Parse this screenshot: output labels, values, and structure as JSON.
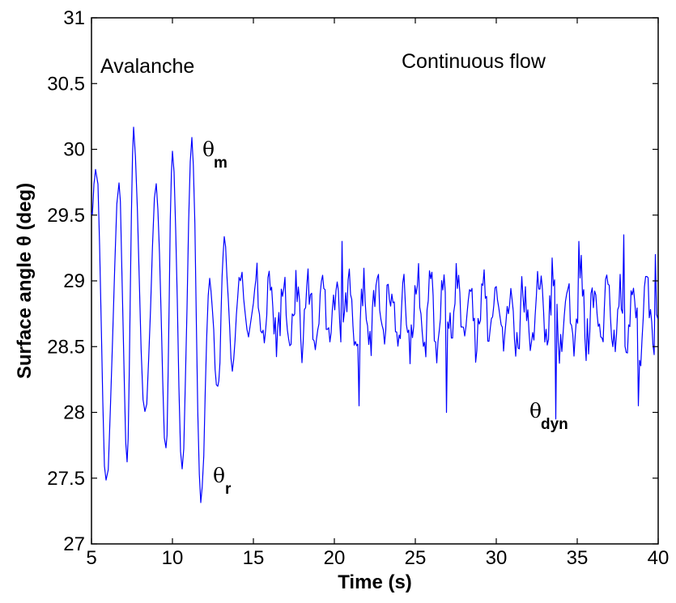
{
  "chart_data": {
    "type": "line",
    "title": "",
    "xlabel": "Time (s)",
    "ylabel": "Surface angle θ (deg)",
    "xlim": [
      5,
      40
    ],
    "ylim": [
      27,
      31
    ],
    "xticks": [
      5,
      10,
      15,
      20,
      25,
      30,
      35,
      40
    ],
    "yticks": [
      27,
      27.5,
      28,
      28.5,
      29,
      29.5,
      30,
      30.5,
      31
    ],
    "xtick_labels": [
      "5",
      "10",
      "15",
      "20",
      "25",
      "30",
      "35",
      "40"
    ],
    "ytick_labels": [
      "27",
      "27.5",
      "28",
      "28.5",
      "29",
      "29.5",
      "30",
      "30.5",
      "31"
    ],
    "grid": false,
    "line_color": "#0000ff",
    "avalanche_peaks": [
      {
        "t": 5.0,
        "v": 29.5
      },
      {
        "t": 5.3,
        "v": 29.85
      },
      {
        "t": 5.9,
        "v": 27.45
      },
      {
        "t": 6.7,
        "v": 29.7
      },
      {
        "t": 7.2,
        "v": 27.65
      },
      {
        "t": 7.6,
        "v": 30.13
      },
      {
        "t": 8.3,
        "v": 27.95
      },
      {
        "t": 9.0,
        "v": 29.7
      },
      {
        "t": 9.6,
        "v": 27.72
      },
      {
        "t": 10.0,
        "v": 30.0
      },
      {
        "t": 10.6,
        "v": 27.6
      },
      {
        "t": 11.2,
        "v": 30.1
      },
      {
        "t": 11.75,
        "v": 27.3
      },
      {
        "t": 12.3,
        "v": 29.0
      },
      {
        "t": 12.8,
        "v": 28.15
      },
      {
        "t": 13.2,
        "v": 29.3
      },
      {
        "t": 13.7,
        "v": 28.35
      },
      {
        "t": 14.2,
        "v": 29.05
      },
      {
        "t": 14.8,
        "v": 28.5
      }
    ],
    "continuous_flow": {
      "t_start": 15,
      "t_end": 40,
      "mean": 28.75,
      "amplitude": 0.3,
      "extremes": [
        {
          "t": 20.5,
          "v": 29.3
        },
        {
          "t": 21.5,
          "v": 28.05
        },
        {
          "t": 26.9,
          "v": 28.0
        },
        {
          "t": 33.7,
          "v": 27.95
        },
        {
          "t": 35.1,
          "v": 29.3
        },
        {
          "t": 37.9,
          "v": 29.35
        },
        {
          "t": 38.8,
          "v": 28.05
        },
        {
          "t": 39.8,
          "v": 29.2
        }
      ]
    },
    "annotations": {
      "avalanche": "Avalanche",
      "continuous": "Continuous flow",
      "theta_m": {
        "symbol": "θ",
        "subscript": "m"
      },
      "theta_r": {
        "symbol": "θ",
        "subscript": "r"
      },
      "theta_dyn": {
        "symbol": "θ",
        "subscript": "dyn"
      }
    }
  }
}
